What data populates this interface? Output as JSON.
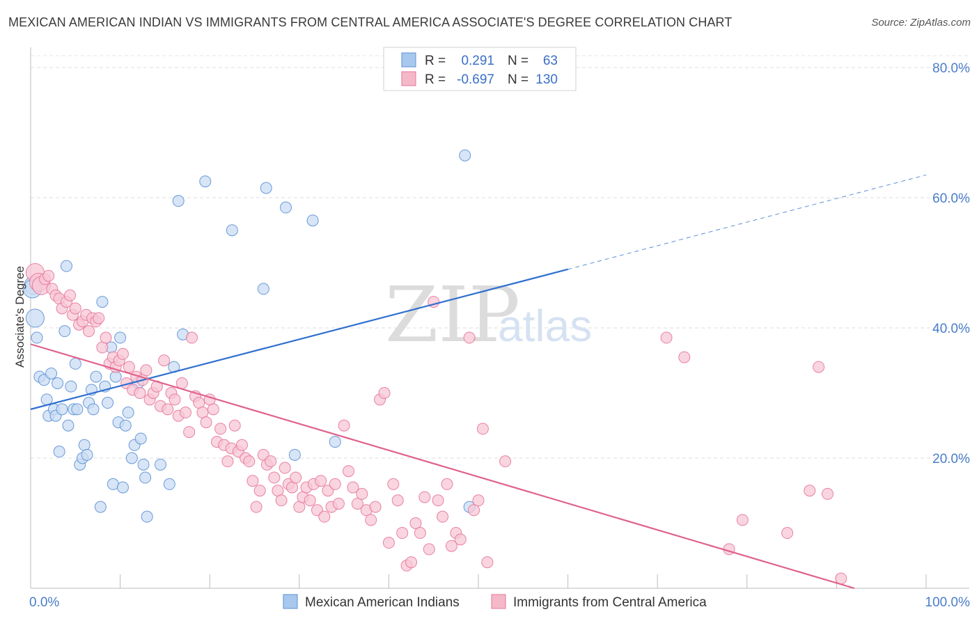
{
  "title": "MEXICAN AMERICAN INDIAN VS IMMIGRANTS FROM CENTRAL AMERICA ASSOCIATE'S DEGREE CORRELATION CHART",
  "source": "Source: ZipAtlas.com",
  "watermark": {
    "zip": "ZIP",
    "atlas": "atlas"
  },
  "legend": {
    "rows": [
      {
        "r_label": "R =",
        "r_value": "0.291",
        "n_label": "N =",
        "n_value": "63",
        "color": "#a8c8ee"
      },
      {
        "r_label": "R =",
        "r_value": "-0.697",
        "n_label": "N =",
        "n_value": "130",
        "color": "#f5b8c9"
      }
    ]
  },
  "chart_data": {
    "type": "scatter",
    "title": "MEXICAN AMERICAN INDIAN VS IMMIGRANTS FROM CENTRAL AMERICA ASSOCIATE'S DEGREE CORRELATION CHART",
    "xlabel": "",
    "ylabel": "Associate's Degree",
    "xlim": [
      0,
      100
    ],
    "ylim": [
      0,
      80
    ],
    "x_tick_labels": [
      "0.0%",
      "100.0%"
    ],
    "y_tick_labels": [
      "20.0%",
      "40.0%",
      "60.0%",
      "80.0%"
    ],
    "y_ticks": [
      20,
      40,
      60,
      80
    ],
    "grid": "horizontal dashed",
    "legend_position": "bottom",
    "series": [
      {
        "name": "Mexican American Indians",
        "color": "#5b8fd6",
        "fill": "#c9dcf3",
        "trend": {
          "x0": 0,
          "y0": 27.5,
          "x1": 60,
          "y1": 49,
          "dashed_to_x": 100,
          "dashed_to_y": 63.5
        },
        "points": [
          [
            0.3,
            46.5
          ],
          [
            0.5,
            41.5
          ],
          [
            0.7,
            38.5
          ],
          [
            1.0,
            32.5
          ],
          [
            1.5,
            32.0
          ],
          [
            1.8,
            29.0
          ],
          [
            2.0,
            26.5
          ],
          [
            2.3,
            33.0
          ],
          [
            2.6,
            27.5
          ],
          [
            2.8,
            26.5
          ],
          [
            3.0,
            31.5
          ],
          [
            3.2,
            21.0
          ],
          [
            3.5,
            27.5
          ],
          [
            3.8,
            39.5
          ],
          [
            4.0,
            49.5
          ],
          [
            4.2,
            25.0
          ],
          [
            4.5,
            31.0
          ],
          [
            4.8,
            27.5
          ],
          [
            5.0,
            34.5
          ],
          [
            5.2,
            27.5
          ],
          [
            5.5,
            19.0
          ],
          [
            5.8,
            20.0
          ],
          [
            6.0,
            22.0
          ],
          [
            6.3,
            20.5
          ],
          [
            6.5,
            28.5
          ],
          [
            6.8,
            30.5
          ],
          [
            7.0,
            27.5
          ],
          [
            7.3,
            32.5
          ],
          [
            7.8,
            12.5
          ],
          [
            8.0,
            44.0
          ],
          [
            8.3,
            31.0
          ],
          [
            8.6,
            28.5
          ],
          [
            9.0,
            37.0
          ],
          [
            9.2,
            16.0
          ],
          [
            9.5,
            32.5
          ],
          [
            9.8,
            25.5
          ],
          [
            10.0,
            38.5
          ],
          [
            10.3,
            15.5
          ],
          [
            10.6,
            25.0
          ],
          [
            10.9,
            27.0
          ],
          [
            11.3,
            20.0
          ],
          [
            11.6,
            22.0
          ],
          [
            12.0,
            31.5
          ],
          [
            12.3,
            23.0
          ],
          [
            12.6,
            19.0
          ],
          [
            12.8,
            17.0
          ],
          [
            13.0,
            11.0
          ],
          [
            14.5,
            19.0
          ],
          [
            15.5,
            16.0
          ],
          [
            16.0,
            34.0
          ],
          [
            16.5,
            59.5
          ],
          [
            17.0,
            39.0
          ],
          [
            19.5,
            62.5
          ],
          [
            22.5,
            55.0
          ],
          [
            26.0,
            46.0
          ],
          [
            26.3,
            61.5
          ],
          [
            28.5,
            58.5
          ],
          [
            29.5,
            20.5
          ],
          [
            31.5,
            56.5
          ],
          [
            34.0,
            22.5
          ],
          [
            48.5,
            66.5
          ],
          [
            49.0,
            12.5
          ],
          [
            0.2,
            46.0
          ]
        ]
      },
      {
        "name": "Immigrants from Central America",
        "color": "#e7749a",
        "fill": "#f7c7d5",
        "trend": {
          "x0": 0,
          "y0": 37.5,
          "x1": 92,
          "y1": 0
        },
        "points": [
          [
            0.5,
            48.5
          ],
          [
            0.9,
            47.0
          ],
          [
            1.2,
            46.5
          ],
          [
            1.6,
            47.5
          ],
          [
            2.0,
            48.0
          ],
          [
            2.4,
            46.0
          ],
          [
            2.8,
            45.0
          ],
          [
            3.2,
            44.5
          ],
          [
            3.5,
            43.0
          ],
          [
            4.0,
            44.0
          ],
          [
            4.4,
            45.0
          ],
          [
            4.7,
            42.0
          ],
          [
            5.0,
            43.0
          ],
          [
            5.4,
            40.5
          ],
          [
            5.8,
            41.0
          ],
          [
            6.2,
            42.0
          ],
          [
            6.5,
            39.5
          ],
          [
            6.9,
            41.5
          ],
          [
            7.3,
            41.0
          ],
          [
            7.6,
            41.5
          ],
          [
            8.0,
            37.0
          ],
          [
            8.4,
            38.5
          ],
          [
            8.8,
            34.5
          ],
          [
            9.2,
            35.5
          ],
          [
            9.5,
            34.0
          ],
          [
            9.9,
            35.0
          ],
          [
            10.3,
            36.0
          ],
          [
            10.7,
            31.5
          ],
          [
            11.0,
            34.0
          ],
          [
            11.4,
            30.5
          ],
          [
            11.8,
            32.5
          ],
          [
            12.2,
            30.0
          ],
          [
            12.5,
            32.0
          ],
          [
            12.9,
            33.5
          ],
          [
            13.3,
            29.0
          ],
          [
            13.7,
            30.0
          ],
          [
            14.1,
            31.0
          ],
          [
            14.5,
            28.0
          ],
          [
            14.9,
            35.0
          ],
          [
            15.3,
            27.5
          ],
          [
            15.7,
            30.0
          ],
          [
            16.1,
            29.0
          ],
          [
            16.5,
            26.5
          ],
          [
            16.9,
            31.5
          ],
          [
            17.3,
            27.0
          ],
          [
            17.7,
            24.0
          ],
          [
            18.0,
            38.5
          ],
          [
            18.4,
            29.5
          ],
          [
            18.8,
            28.5
          ],
          [
            19.2,
            27.0
          ],
          [
            19.6,
            25.5
          ],
          [
            20.0,
            29.0
          ],
          [
            20.4,
            27.5
          ],
          [
            20.8,
            22.5
          ],
          [
            21.2,
            24.5
          ],
          [
            21.6,
            22.0
          ],
          [
            22.0,
            19.5
          ],
          [
            22.4,
            21.5
          ],
          [
            22.8,
            25.0
          ],
          [
            23.2,
            21.0
          ],
          [
            23.6,
            22.0
          ],
          [
            24.0,
            20.0
          ],
          [
            24.4,
            19.5
          ],
          [
            24.8,
            16.5
          ],
          [
            25.2,
            12.5
          ],
          [
            25.6,
            15.0
          ],
          [
            26.0,
            20.5
          ],
          [
            26.4,
            19.0
          ],
          [
            26.8,
            19.5
          ],
          [
            27.2,
            17.0
          ],
          [
            27.6,
            15.0
          ],
          [
            28.0,
            13.5
          ],
          [
            28.4,
            18.5
          ],
          [
            28.8,
            16.0
          ],
          [
            29.2,
            15.5
          ],
          [
            29.6,
            17.0
          ],
          [
            30.0,
            12.5
          ],
          [
            30.4,
            14.0
          ],
          [
            30.8,
            15.5
          ],
          [
            31.2,
            13.5
          ],
          [
            31.6,
            16.0
          ],
          [
            32.0,
            12.0
          ],
          [
            32.4,
            16.5
          ],
          [
            32.8,
            11.0
          ],
          [
            33.2,
            15.0
          ],
          [
            33.6,
            12.5
          ],
          [
            34.0,
            16.0
          ],
          [
            34.4,
            13.0
          ],
          [
            35.0,
            25.0
          ],
          [
            35.5,
            18.0
          ],
          [
            36.0,
            15.5
          ],
          [
            36.5,
            13.0
          ],
          [
            37.0,
            14.5
          ],
          [
            37.5,
            12.0
          ],
          [
            38.0,
            10.5
          ],
          [
            38.5,
            12.5
          ],
          [
            39.0,
            29.0
          ],
          [
            39.5,
            30.0
          ],
          [
            40.0,
            7.0
          ],
          [
            40.5,
            16.0
          ],
          [
            41.0,
            13.5
          ],
          [
            41.5,
            8.5
          ],
          [
            42.0,
            3.5
          ],
          [
            42.5,
            4.0
          ],
          [
            43.0,
            10.0
          ],
          [
            43.5,
            8.5
          ],
          [
            44.0,
            14.0
          ],
          [
            44.5,
            6.0
          ],
          [
            45.0,
            44.0
          ],
          [
            45.5,
            13.5
          ],
          [
            46.0,
            11.0
          ],
          [
            46.5,
            16.0
          ],
          [
            47.0,
            6.5
          ],
          [
            47.5,
            8.5
          ],
          [
            48.0,
            7.5
          ],
          [
            49.0,
            38.5
          ],
          [
            49.5,
            12.0
          ],
          [
            50.0,
            13.5
          ],
          [
            50.5,
            24.5
          ],
          [
            51.0,
            4.0
          ],
          [
            53.0,
            19.5
          ],
          [
            71.0,
            38.5
          ],
          [
            73.0,
            35.5
          ],
          [
            78.0,
            6.0
          ],
          [
            79.5,
            10.5
          ],
          [
            84.5,
            8.5
          ],
          [
            87.0,
            15.0
          ],
          [
            88.0,
            34.0
          ],
          [
            89.0,
            14.5
          ],
          [
            90.5,
            1.5
          ]
        ]
      }
    ]
  },
  "bottom_legend": [
    {
      "label": "Mexican American Indians",
      "color": "#a8c8ee"
    },
    {
      "label": "Immigrants from Central America",
      "color": "#f5b8c9"
    }
  ]
}
